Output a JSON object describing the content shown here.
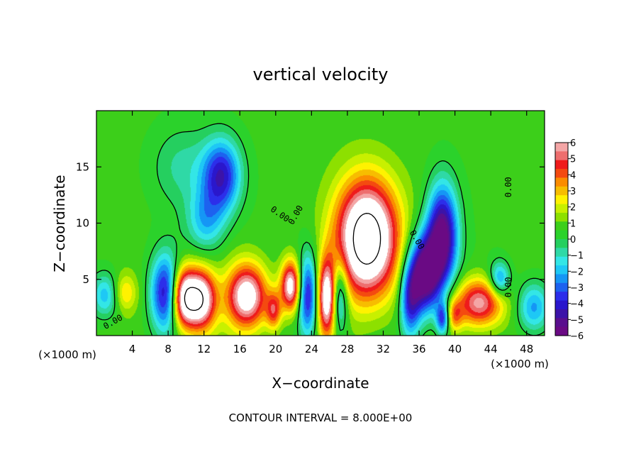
{
  "chart_data": {
    "type": "heatmap",
    "title": "vertical velocity",
    "xlabel": "X−coordinate",
    "ylabel": "Z−coordinate",
    "x_unit_left": "(×1000 m)",
    "x_unit_right": "(×1000 m)",
    "footer": "CONTOUR INTERVAL = 8.000E+00",
    "xlim": [
      0,
      50
    ],
    "ylim": [
      0,
      20
    ],
    "x_ticks": [
      4,
      8,
      12,
      16,
      20,
      24,
      28,
      32,
      36,
      40,
      44,
      48
    ],
    "x_tick_labels": [
      "4",
      "8",
      "12",
      "16",
      "20",
      "24",
      "28",
      "32",
      "36",
      "40",
      "44",
      "48"
    ],
    "y_ticks": [
      5,
      10,
      15
    ],
    "y_tick_labels": [
      "5",
      "10",
      "15"
    ],
    "colorbar": {
      "labels": [
        "6",
        "5",
        "4",
        "3",
        "2",
        "1",
        "0",
        "−1",
        "−2",
        "−3",
        "−4",
        "−5",
        "−6"
      ],
      "colors": [
        "#f4a6a6",
        "#ee6e6e",
        "#ef1b1b",
        "#f44a10",
        "#fb8c00",
        "#f7bd00",
        "#fff200",
        "#c8f000",
        "#8de000",
        "#3ccf1a",
        "#2bd22b",
        "#25cf5f",
        "#2fd9a6",
        "#33e6e6",
        "#1ec8f5",
        "#1596f5",
        "#1d62ef",
        "#2c2eea",
        "#2a17cc",
        "#3c13a8",
        "#5a0f8e",
        "#6a0a84"
      ],
      "range": [
        -6,
        6
      ]
    },
    "contour_labels": [
      "0.00",
      "0.00",
      "0.00",
      "0.00",
      "0.00",
      "0.00"
    ],
    "features": [
      {
        "x": 30.2,
        "z": 8.6,
        "sx": 2.4,
        "sz": 3.6,
        "w": 9.0
      },
      {
        "x": 16.8,
        "z": 3.5,
        "sx": 1.6,
        "sz": 2.0,
        "w": 6.5
      },
      {
        "x": 42.7,
        "z": 2.9,
        "sx": 1.9,
        "sz": 1.5,
        "w": 5.2
      },
      {
        "x": 11.6,
        "z": 3.2,
        "sx": 1.2,
        "sz": 1.9,
        "w": 7.0
      },
      {
        "x": 25.8,
        "z": 3.3,
        "sx": 0.8,
        "sz": 2.4,
        "w": 6.8
      },
      {
        "x": 21.7,
        "z": 4.4,
        "sx": 0.8,
        "sz": 1.6,
        "w": 6.2
      },
      {
        "x": 9.6,
        "z": 3.4,
        "sx": 1.0,
        "sz": 1.9,
        "w": 6.5
      },
      {
        "x": 36.6,
        "z": 5.5,
        "sx": 1.2,
        "sz": 2.4,
        "w": -7.2
      },
      {
        "x": 38.6,
        "z": 8.8,
        "sx": 1.2,
        "sz": 3.2,
        "w": -6.8
      },
      {
        "x": 14.0,
        "z": 14.2,
        "sx": 1.5,
        "sz": 2.3,
        "w": -4.8
      },
      {
        "x": 7.8,
        "z": 3.8,
        "sx": 1.2,
        "sz": 2.4,
        "w": -5.3
      },
      {
        "x": 23.6,
        "z": 3.6,
        "sx": 0.8,
        "sz": 2.6,
        "w": -5.0
      },
      {
        "x": 27.0,
        "z": 3.4,
        "sx": 0.7,
        "sz": 2.3,
        "w": -4.5
      },
      {
        "x": 19.8,
        "z": 2.2,
        "sx": 0.6,
        "sz": 1.2,
        "w": 3.5
      },
      {
        "x": 3.0,
        "z": 3.8,
        "sx": 1.0,
        "sz": 1.2,
        "w": 2.5
      },
      {
        "x": 35.0,
        "z": 3.0,
        "sx": 0.8,
        "sz": 2.4,
        "w": -4.2
      },
      {
        "x": 48.8,
        "z": 2.5,
        "sx": 1.3,
        "sz": 1.6,
        "w": -3.2
      },
      {
        "x": 45.0,
        "z": 5.0,
        "sx": 0.8,
        "sz": 1.1,
        "w": -3.4
      },
      {
        "x": 1.2,
        "z": 3.6,
        "sx": 1.2,
        "sz": 1.4,
        "w": -3.0
      },
      {
        "x": 12.2,
        "z": 10.2,
        "sx": 1.5,
        "sz": 2.0,
        "w": -2.6
      },
      {
        "x": 9.8,
        "z": 15.0,
        "sx": 2.5,
        "sz": 2.5,
        "w": -1.4
      },
      {
        "x": 38.6,
        "z": 1.5,
        "sx": 0.5,
        "sz": 1.0,
        "w": -4.0
      },
      {
        "x": 40.0,
        "z": 1.8,
        "sx": 0.6,
        "sz": 1.0,
        "w": 2.5
      }
    ]
  }
}
